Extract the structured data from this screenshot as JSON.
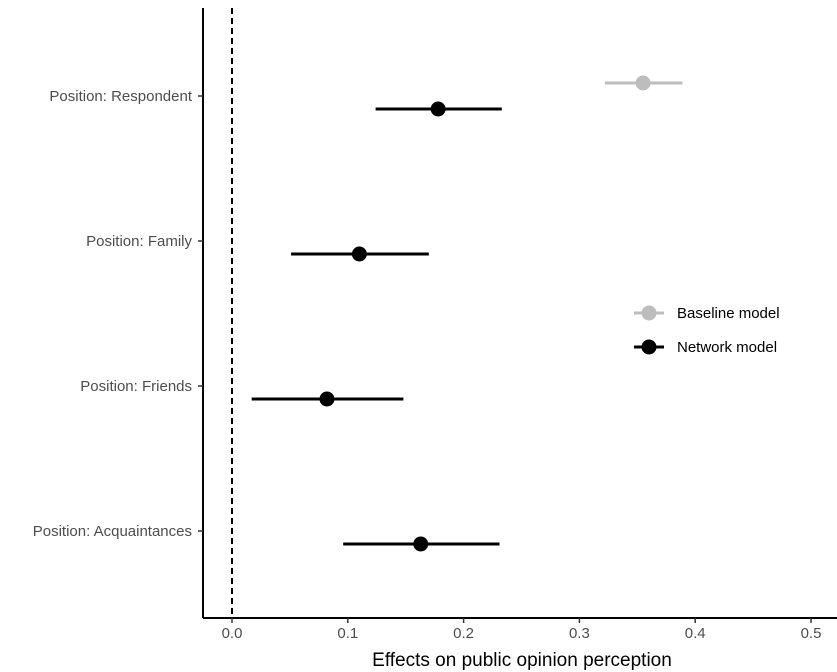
{
  "chart_data": {
    "type": "scatter",
    "subtype": "coefficient-plot",
    "xlabel": "Effects on public opinion perception",
    "xlim": [
      -0.025,
      0.525
    ],
    "x_ticks": [
      0.0,
      0.1,
      0.2,
      0.3,
      0.4,
      0.5
    ],
    "x_tick_labels": [
      "0.0",
      "0.1",
      "0.2",
      "0.3",
      "0.4",
      "0.5"
    ],
    "reference_line": {
      "x": 0,
      "style": "dashed"
    },
    "categories": [
      "Position: Respondent",
      "Position: Family",
      "Position: Friends",
      "Position: Acquaintances"
    ],
    "series": [
      {
        "name": "Baseline model",
        "color": "#bdbdbd",
        "points": [
          {
            "category": "Position: Respondent",
            "estimate": 0.355,
            "lower": 0.322,
            "upper": 0.389
          }
        ]
      },
      {
        "name": "Network model",
        "color": "#000000",
        "points": [
          {
            "category": "Position: Respondent",
            "estimate": 0.178,
            "lower": 0.124,
            "upper": 0.233
          },
          {
            "category": "Position: Family",
            "estimate": 0.11,
            "lower": 0.051,
            "upper": 0.17
          },
          {
            "category": "Position: Friends",
            "estimate": 0.082,
            "lower": 0.017,
            "upper": 0.148
          },
          {
            "category": "Position: Acquaintances",
            "estimate": 0.163,
            "lower": 0.096,
            "upper": 0.231
          }
        ]
      }
    ],
    "legend": {
      "position": "right",
      "entries": [
        "Baseline model",
        "Network model"
      ]
    },
    "grid": false
  }
}
